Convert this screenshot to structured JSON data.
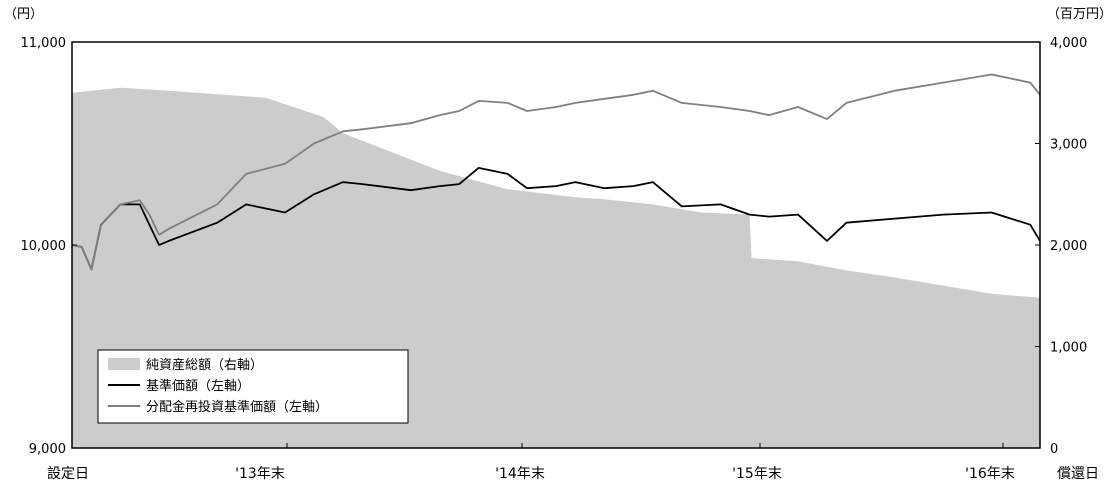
{
  "chart_data": {
    "type": "line",
    "title": "",
    "left_axis": {
      "unit_label": "（円）",
      "range": [
        9000,
        11000
      ],
      "ticks": [
        "9,000",
        "10,000",
        "11,000"
      ]
    },
    "right_axis": {
      "unit_label": "（百万円）",
      "range": [
        0,
        4000
      ],
      "ticks": [
        "0",
        "1,000",
        "2,000",
        "3,000",
        "4,000"
      ]
    },
    "x_labels": [
      "設定日",
      "'13年末",
      "'14年末",
      "'15年末",
      "'16年末",
      "償還日"
    ],
    "legend": {
      "placement": "bottom-left",
      "entries": [
        {
          "label": "純資産総額（右軸）",
          "kind": "area",
          "color": "#cccccc"
        },
        {
          "label": "基準価額（左軸）",
          "kind": "line",
          "color": "#000000"
        },
        {
          "label": "分配金再投資基準価額（左軸）",
          "kind": "line",
          "color": "#808080"
        }
      ]
    },
    "series": [
      {
        "name": "純資産総額（右軸）",
        "axis": "right",
        "type": "area",
        "color": "#cccccc",
        "x": [
          0,
          0.05,
          0.1,
          0.2,
          0.26,
          0.28,
          0.38,
          0.45,
          0.52,
          0.55,
          0.6,
          0.65,
          0.7,
          0.702,
          0.75,
          0.8,
          0.85,
          0.9,
          0.95,
          1.0
        ],
        "values": [
          3500,
          3550,
          3520,
          3450,
          3260,
          3100,
          2730,
          2550,
          2470,
          2450,
          2400,
          2320,
          2300,
          1870,
          1840,
          1750,
          1680,
          1600,
          1520,
          1480
        ]
      },
      {
        "name": "基準価額（左軸）",
        "axis": "left",
        "type": "line",
        "color": "#000000",
        "x": [
          0,
          0.01,
          0.02,
          0.03,
          0.05,
          0.07,
          0.08,
          0.09,
          0.1,
          0.15,
          0.18,
          0.22,
          0.25,
          0.28,
          0.3,
          0.35,
          0.38,
          0.4,
          0.42,
          0.45,
          0.47,
          0.5,
          0.52,
          0.55,
          0.58,
          0.6,
          0.63,
          0.67,
          0.7,
          0.72,
          0.75,
          0.78,
          0.8,
          0.85,
          0.9,
          0.95,
          0.99,
          1.0
        ],
        "values": [
          10000,
          9990,
          9880,
          10100,
          10200,
          10200,
          10100,
          10000,
          10020,
          10110,
          10200,
          10160,
          10250,
          10310,
          10300,
          10270,
          10290,
          10300,
          10380,
          10350,
          10280,
          10290,
          10310,
          10280,
          10290,
          10310,
          10190,
          10200,
          10150,
          10140,
          10150,
          10020,
          10110,
          10130,
          10150,
          10160,
          10100,
          10020
        ]
      },
      {
        "name": "分配金再投資基準価額（左軸）",
        "axis": "left",
        "type": "line",
        "color": "#808080",
        "x": [
          0,
          0.01,
          0.02,
          0.03,
          0.05,
          0.07,
          0.08,
          0.09,
          0.1,
          0.15,
          0.18,
          0.22,
          0.25,
          0.28,
          0.3,
          0.35,
          0.38,
          0.4,
          0.42,
          0.45,
          0.47,
          0.5,
          0.52,
          0.55,
          0.58,
          0.6,
          0.63,
          0.67,
          0.7,
          0.72,
          0.75,
          0.78,
          0.8,
          0.85,
          0.9,
          0.95,
          0.99,
          1.0
        ],
        "values": [
          10000,
          9990,
          9880,
          10100,
          10200,
          10220,
          10150,
          10050,
          10080,
          10200,
          10350,
          10400,
          10500,
          10560,
          10570,
          10600,
          10640,
          10660,
          10710,
          10700,
          10660,
          10680,
          10700,
          10720,
          10740,
          10760,
          10700,
          10680,
          10660,
          10640,
          10680,
          10620,
          10700,
          10760,
          10800,
          10840,
          10800,
          10740
        ]
      }
    ]
  }
}
